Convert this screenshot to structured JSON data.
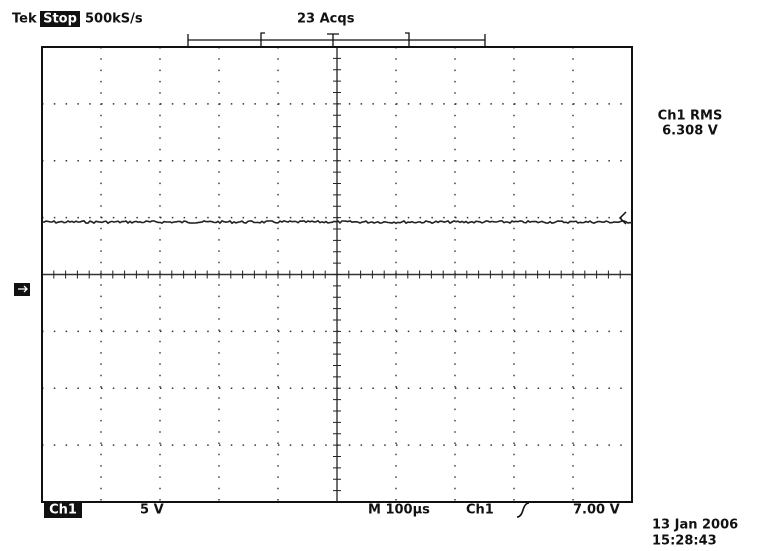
{
  "header": {
    "brand": "Tek",
    "state": "Stop",
    "sample_rate": "500kS/s",
    "acquisitions": "23 Acqs"
  },
  "measurement": {
    "label": "Ch1 RMS",
    "value": "6.308 V"
  },
  "footer": {
    "channel": "Ch1",
    "volts_per_div": "5 V",
    "time_per_div": "M 100µs",
    "trigger_source": "Ch1",
    "trigger_level": "7.00 V"
  },
  "timestamp": {
    "date": "13 Jan 2006",
    "time": "15:28:43"
  }
}
